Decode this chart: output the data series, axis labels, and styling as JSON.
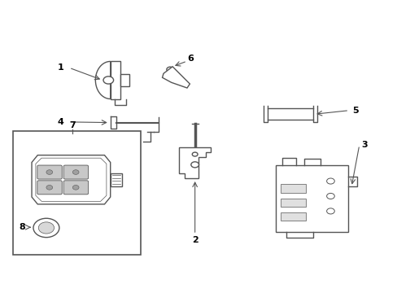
{
  "background_color": "#ffffff",
  "line_color": "#555555",
  "label_color": "#000000",
  "fig_width": 4.89,
  "fig_height": 3.6,
  "dpi": 100
}
